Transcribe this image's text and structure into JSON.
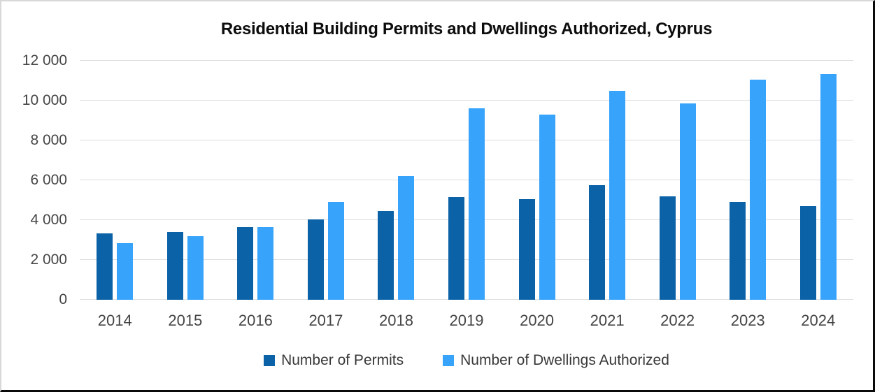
{
  "title": "Residential Building Permits and Dwellings Authorized, Cyprus",
  "colors": {
    "permits": "#0b62a7",
    "dwellings": "#37a3fa",
    "gridline": "#dedede",
    "axis_text": "#454545",
    "legend_text": "#383838",
    "title_text": "#0d0d0d"
  },
  "y_axis": {
    "max": 12000,
    "ticks": [
      {
        "value": 0,
        "label": "0"
      },
      {
        "value": 2000,
        "label": "2 000"
      },
      {
        "value": 4000,
        "label": "4 000"
      },
      {
        "value": 6000,
        "label": "6 000"
      },
      {
        "value": 8000,
        "label": "8 000"
      },
      {
        "value": 10000,
        "label": "10 000"
      },
      {
        "value": 12000,
        "label": "12 000"
      }
    ]
  },
  "legend": [
    {
      "label": "Number of Permits",
      "color_key": "permits"
    },
    {
      "label": "Number of Dwellings Authorized",
      "color_key": "dwellings"
    }
  ],
  "chart_data": {
    "type": "bar",
    "title": "Residential Building Permits and Dwellings Authorized, Cyprus",
    "categories": [
      "2014",
      "2015",
      "2016",
      "2017",
      "2018",
      "2019",
      "2020",
      "2021",
      "2022",
      "2023",
      "2024"
    ],
    "series": [
      {
        "name": "Number of Permits",
        "color": "#0b62a7",
        "values": [
          3350,
          3400,
          3650,
          4050,
          4450,
          5150,
          5050,
          5750,
          5200,
          4900,
          4700
        ]
      },
      {
        "name": "Number of Dwellings Authorized",
        "color": "#37a3fa",
        "values": [
          2850,
          3200,
          3650,
          4900,
          6200,
          9600,
          9300,
          10500,
          9850,
          11050,
          11350
        ]
      }
    ],
    "xlabel": "",
    "ylabel": "",
    "ylim": [
      0,
      12000
    ],
    "grid": true,
    "legend_position": "bottom"
  }
}
